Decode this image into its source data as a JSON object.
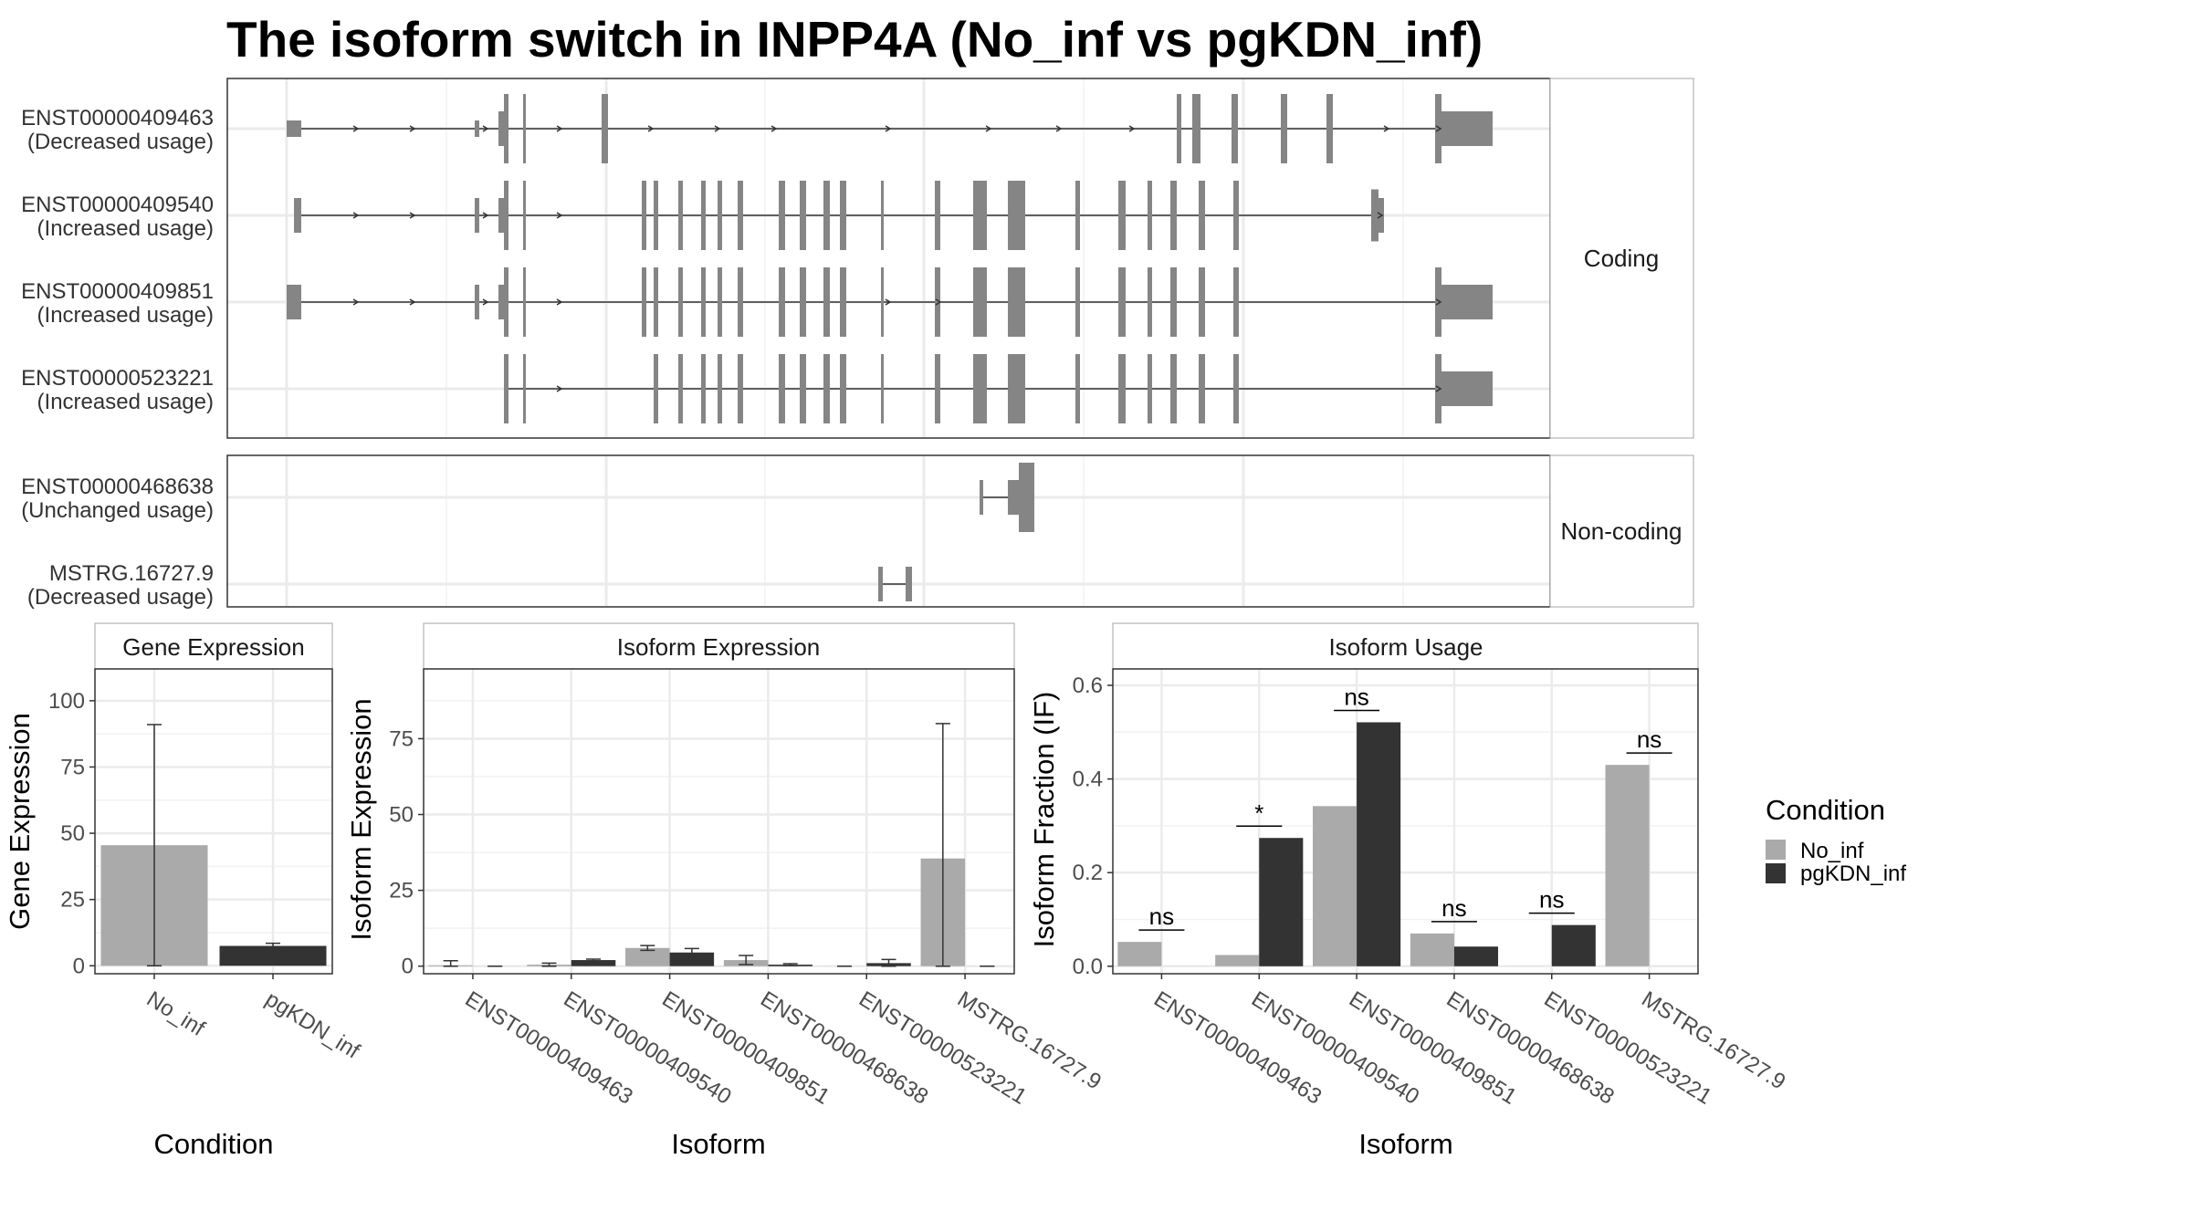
{
  "title": "The isoform switch in INPP4A (No_inf vs pgKDN_inf)",
  "colors": {
    "No_inf": "#aaaaaa",
    "pgKDN_inf": "#333333",
    "exon": "#858585",
    "grid": "#ebebeb"
  },
  "transcripts": {
    "coding_label": "Coding",
    "noncoding_label": "Non-coding",
    "coding": [
      {
        "id": "ENST00000409463",
        "usage": "(Decreased usage)"
      },
      {
        "id": "ENST00000409540",
        "usage": "(Increased usage)"
      },
      {
        "id": "ENST00000409851",
        "usage": "(Increased usage)"
      },
      {
        "id": "ENST00000523221",
        "usage": "(Increased usage)"
      }
    ],
    "noncoding": [
      {
        "id": "ENST00000468638",
        "usage": "(Unchanged usage)"
      },
      {
        "id": "MSTRG.16727.9",
        "usage": "(Decreased usage)"
      }
    ]
  },
  "legend": {
    "title": "Condition",
    "items": [
      "No_inf",
      "pgKDN_inf"
    ]
  },
  "chart_data": [
    {
      "type": "bar",
      "panel": "Gene Expression",
      "xlabel": "Condition",
      "ylabel": "Gene Expression",
      "categories": [
        "No_inf",
        "pgKDN_inf"
      ],
      "values": [
        45.5,
        7.5
      ],
      "error_low": [
        0,
        6.5
      ],
      "error_high": [
        91,
        8.5
      ],
      "ylim": [
        -3,
        112
      ],
      "yticks": [
        0,
        25,
        50,
        75,
        100
      ]
    },
    {
      "type": "bar",
      "panel": "Isoform Expression",
      "xlabel": "Isoform",
      "ylabel": "Isoform Expression",
      "categories": [
        "ENST00000409463",
        "ENST00000409540",
        "ENST00000409851",
        "ENST00000468638",
        "ENST00000523221",
        "MSTRG.16727.9"
      ],
      "series": [
        {
          "name": "No_inf",
          "values": [
            0.3,
            0.5,
            6,
            2,
            0,
            35.5
          ],
          "error_low": [
            0,
            0,
            5.2,
            0.5,
            0,
            0
          ],
          "error_high": [
            1.8,
            1,
            6.8,
            3.5,
            0,
            80
          ]
        },
        {
          "name": "pgKDN_inf",
          "values": [
            0,
            2,
            4.5,
            0.5,
            1,
            0
          ],
          "error_low": [
            0,
            1.5,
            3.2,
            0.2,
            0,
            0
          ],
          "error_high": [
            0,
            2.3,
            5.8,
            0.8,
            2.2,
            0
          ]
        }
      ],
      "ylim": [
        -2.5,
        98
      ],
      "yticks": [
        0,
        25,
        50,
        75
      ]
    },
    {
      "type": "bar",
      "panel": "Isoform Usage",
      "xlabel": "Isoform",
      "ylabel": "Isoform Fraction (IF)",
      "categories": [
        "ENST00000409463",
        "ENST00000409540",
        "ENST00000409851",
        "ENST00000468638",
        "ENST00000523221",
        "MSTRG.16727.9"
      ],
      "series": [
        {
          "name": "No_inf",
          "values": [
            0.052,
            0.024,
            0.342,
            0.07,
            0,
            0.43
          ]
        },
        {
          "name": "pgKDN_inf",
          "values": [
            0,
            0.274,
            0.521,
            0.042,
            0.088,
            0
          ]
        }
      ],
      "significance": [
        "ns",
        "*",
        "ns",
        "ns",
        "ns",
        "ns"
      ],
      "ylim": [
        -0.016,
        0.635
      ],
      "yticks": [
        "0.0",
        "0.2",
        "0.4",
        "0.6"
      ]
    }
  ]
}
